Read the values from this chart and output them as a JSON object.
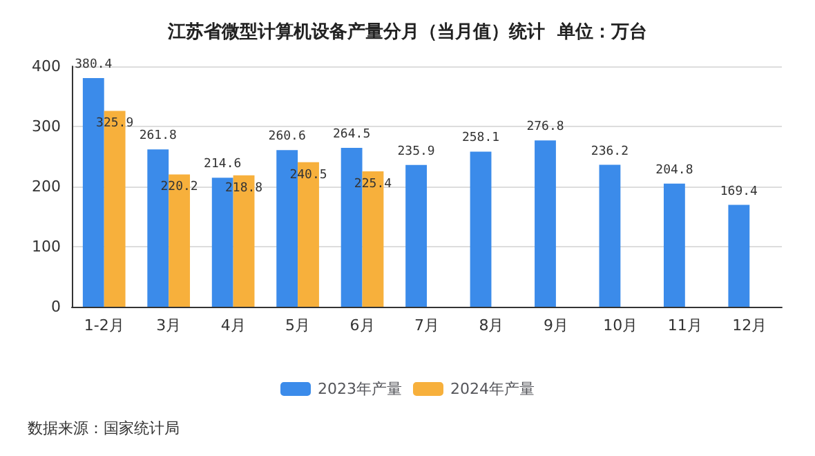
{
  "chart_data": {
    "type": "bar",
    "title": "江苏省微型计算机设备产量分月（当月值）统计  单位：万台",
    "categories": [
      "1-2月",
      "3月",
      "4月",
      "5月",
      "6月",
      "7月",
      "8月",
      "9月",
      "10月",
      "11月",
      "12月"
    ],
    "series": [
      {
        "name": "2023年产量",
        "color": "#3b8bea",
        "values": [
          380.4,
          261.8,
          214.6,
          260.6,
          264.5,
          235.9,
          258.1,
          276.8,
          236.2,
          204.8,
          169.4
        ]
      },
      {
        "name": "2024年产量",
        "color": "#f7b03c",
        "values": [
          325.9,
          220.2,
          218.8,
          240.5,
          225.4,
          null,
          null,
          null,
          null,
          null,
          null
        ]
      }
    ],
    "ylim": [
      0,
      400
    ],
    "yticks": [
      0,
      100,
      200,
      300,
      400
    ],
    "grid": "y",
    "legend": "bottom",
    "data_labels": true,
    "annotations": [
      "数据来源：国家统计局"
    ]
  }
}
